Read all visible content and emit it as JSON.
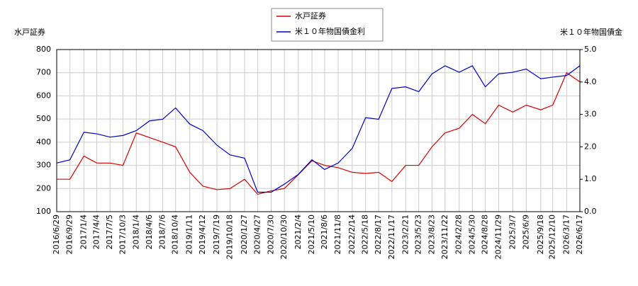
{
  "chart_data": {
    "type": "line",
    "y_label": "水戸証券",
    "y2_label": "米１０年物国債金",
    "x": [
      "2016/6/29",
      "2016/9/29",
      "2017/1/4",
      "2017/4/4",
      "2017/7/5",
      "2017/10/3",
      "2018/1/4",
      "2018/4/6",
      "2018/7/6",
      "2018/10/4",
      "2019/1/11",
      "2019/4/12",
      "2019/7/19",
      "2019/10/18",
      "2020/1/27",
      "2020/4/27",
      "2020/7/30",
      "2020/10/30",
      "2021/2/4",
      "2021/5/10",
      "2021/8/6",
      "2021/11/8",
      "2022/2/14",
      "2022/5/18",
      "2022/8/17",
      "2022/11/17",
      "2023/2/21",
      "2023/5/23",
      "2023/8/23",
      "2023/11/22",
      "2024/2/28",
      "2024/5/30",
      "2024/8/28",
      "2024/11/29",
      "2025/3/7",
      "2025/6/9",
      "2025/9/18",
      "2025/12/10",
      "2026/3/17",
      "2026/6/17"
    ],
    "xlim": [
      "2016/6/29",
      "2026/6/17"
    ],
    "xticks": [
      "2016/6/29",
      "2016/9/29",
      "2017/1/4",
      "2017/4/4",
      "2017/7/5",
      "2017/10/3",
      "2018/1/4",
      "2018/4/6",
      "2018/7/6",
      "2018/10/4",
      "2019/1/11",
      "2019/4/12",
      "2019/7/19",
      "2019/10/18",
      "2020/1/27",
      "2020/4/27",
      "2020/7/30",
      "2020/10/30",
      "2021/2/4",
      "2021/5/10",
      "2021/8/6",
      "2021/11/8",
      "2022/2/14",
      "2022/5/18",
      "2022/8/17",
      "2022/11/17",
      "2023/2/21",
      "2023/5/23",
      "2023/8/23",
      "2023/11/22",
      "2024/2/28",
      "2024/5/30",
      "2024/8/28",
      "2024/11/29",
      "2025/3/7",
      "2025/6/9",
      "2025/9/18",
      "2025/12/10",
      "2026/3/17",
      "2026/6/17"
    ],
    "ylim": [
      100,
      800
    ],
    "yticks": [
      100,
      200,
      300,
      400,
      500,
      600,
      700,
      800
    ],
    "y2lim": [
      0,
      5
    ],
    "y2ticks": [
      {
        "value": 0,
        "label": "0.0"
      },
      {
        "value": 1,
        "label": "1.0"
      },
      {
        "value": 2,
        "label": "2.0"
      },
      {
        "value": 3,
        "label": "3.0"
      },
      {
        "value": 4,
        "label": "4.0"
      },
      {
        "value": 5,
        "label": "5.0"
      }
    ],
    "grid": true,
    "series": [
      {
        "name": "水戸証券",
        "color": "#dd0000",
        "values": [
          240,
          240,
          340,
          310,
          310,
          300,
          440,
          420,
          400,
          380,
          270,
          210,
          195,
          200,
          240,
          175,
          190,
          200,
          260,
          320,
          300,
          290,
          270,
          265,
          270,
          230,
          300,
          300,
          380,
          440,
          460,
          520,
          480,
          560,
          530,
          560,
          540,
          560,
          700,
          660
        ]
      },
      {
        "name": "米１０年物国債金利",
        "color": "#0000cc",
        "axis": "y2",
        "values": [
          1.5,
          1.6,
          2.45,
          2.4,
          2.3,
          2.35,
          2.5,
          2.8,
          2.85,
          3.2,
          2.7,
          2.5,
          2.05,
          1.75,
          1.65,
          0.6,
          0.6,
          0.85,
          1.15,
          1.6,
          1.3,
          1.5,
          1.95,
          2.9,
          2.85,
          3.8,
          3.85,
          3.7,
          4.25,
          4.5,
          4.3,
          4.5,
          3.85,
          4.25,
          4.3,
          4.4,
          4.1,
          4.15,
          4.2,
          4.5
        ]
      }
    ]
  }
}
